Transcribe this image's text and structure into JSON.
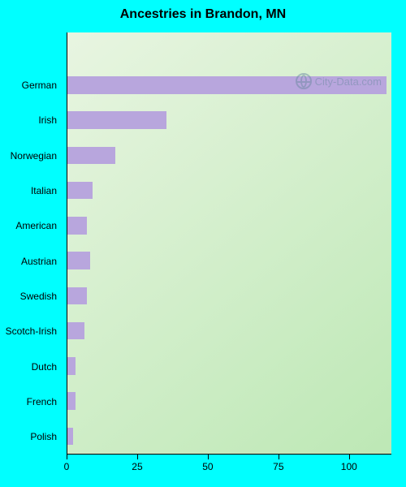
{
  "chart": {
    "type": "bar-horizontal",
    "title": "Ancestries in Brandon, MN",
    "title_fontsize": 16,
    "title_color": "#000000",
    "page_background": "#00ffff",
    "plot_gradient_from": "#e8f5e1",
    "plot_gradient_to": "#bde8b5",
    "gradient_angle_deg": 140,
    "axis_color": "#000000",
    "label_fontsize": 12,
    "bar_color": "#b8a6dd",
    "x_axis": {
      "min": 0,
      "max": 115,
      "ticks": [
        0,
        25,
        50,
        75,
        100
      ]
    },
    "categories": [
      "German",
      "Irish",
      "Norwegian",
      "Italian",
      "American",
      "Austrian",
      "Swedish",
      "Scotch-Irish",
      "Dutch",
      "French",
      "Polish"
    ],
    "values": [
      113,
      35,
      17,
      9,
      7,
      8,
      7,
      6,
      3,
      3,
      2
    ],
    "watermark": {
      "text": "City-Data.com",
      "color": "#6d8aa3",
      "fontsize": 13
    }
  }
}
